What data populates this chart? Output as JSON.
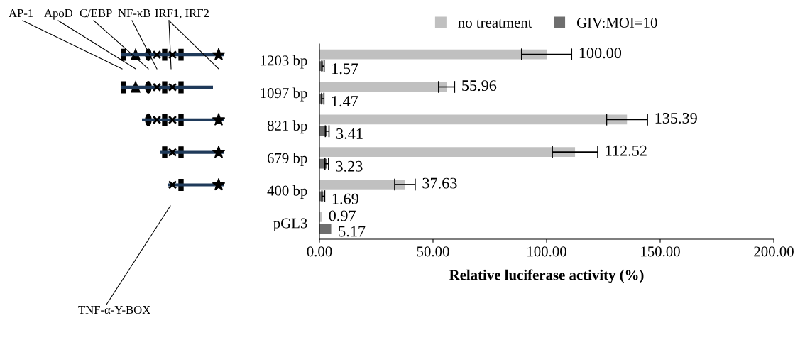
{
  "chart_data": {
    "type": "bar",
    "orientation": "horizontal",
    "categories": [
      "1203 bp",
      "1097 bp",
      "821 bp",
      "679 bp",
      "400 bp",
      "pGL3"
    ],
    "series": [
      {
        "name": "no treatment",
        "color": "#c0c0c0",
        "values": [
          100.0,
          55.96,
          135.39,
          112.52,
          37.63,
          0.97
        ],
        "errors": [
          11,
          3.5,
          9,
          10,
          4.5,
          null
        ],
        "value_labels": [
          "100.00",
          "55.96",
          "135.39",
          "112.52",
          "37.63",
          "0.97"
        ]
      },
      {
        "name": "GIV:MOI=10",
        "color": "#6e6e6e",
        "values": [
          1.57,
          1.47,
          3.41,
          3.23,
          1.69,
          5.17
        ],
        "errors": [
          0.5,
          0.5,
          0.8,
          0.8,
          0.6,
          null
        ],
        "value_labels": [
          "1.57",
          "1.47",
          "3.41",
          "3.23",
          "1.69",
          "5.17"
        ]
      }
    ],
    "xlim": [
      0,
      200
    ],
    "xticks": [
      {
        "value": 0,
        "label": "0.00"
      },
      {
        "value": 50,
        "label": "50.00"
      },
      {
        "value": 100,
        "label": "100.00"
      },
      {
        "value": 150,
        "label": "150.00"
      },
      {
        "value": 200,
        "label": "200.00"
      }
    ],
    "xlabel": "Relative luciferase activity (%)",
    "legend": "top",
    "grid": false,
    "annotations": [
      "AP-1",
      "ApoD",
      "C/EBP",
      "NF-κB",
      "IRF1, IRF2",
      "TNF-α-Y-BOX"
    ]
  }
}
